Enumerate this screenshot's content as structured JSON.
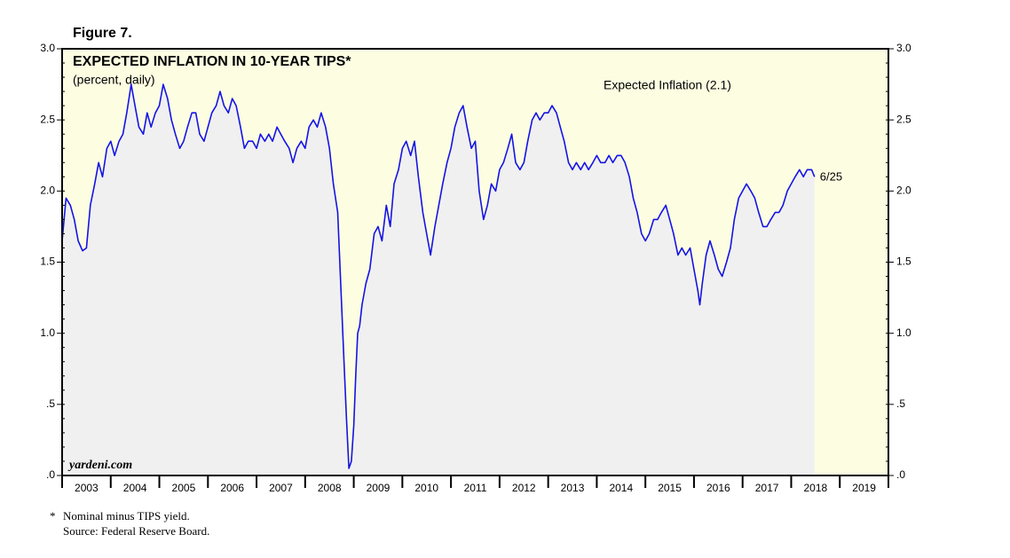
{
  "chart_data": {
    "type": "line",
    "figure_label": "Figure 7.",
    "title": "EXPECTED INFLATION IN 10-YEAR TIPS*",
    "subtitle": "(percent, daily)",
    "end_label": "6/25",
    "watermark": "yardeni.com",
    "footnote": "Nominal minus TIPS yield.",
    "footnote_marker": "*",
    "source": "Source: Federal Reserve Board.",
    "xlim": [
      2003,
      2020
    ],
    "xticks": [
      2003,
      2004,
      2005,
      2006,
      2007,
      2008,
      2009,
      2010,
      2011,
      2012,
      2013,
      2014,
      2015,
      2016,
      2017,
      2018,
      2019
    ],
    "ylim": [
      0,
      3
    ],
    "yticks": [
      {
        "value": 0,
        "label": ".0"
      },
      {
        "value": 0.5,
        "label": ".5"
      },
      {
        "value": 1,
        "label": "1.0"
      },
      {
        "value": 1.5,
        "label": "1.5"
      },
      {
        "value": 2,
        "label": "2.0"
      },
      {
        "value": 2.5,
        "label": "2.5"
      },
      {
        "value": 3,
        "label": "3.0"
      }
    ],
    "x": [
      2003,
      2003.08,
      2003.17,
      2003.25,
      2003.33,
      2003.42,
      2003.5,
      2003.58,
      2003.67,
      2003.75,
      2003.83,
      2003.92,
      2004,
      2004.08,
      2004.17,
      2004.25,
      2004.33,
      2004.42,
      2004.5,
      2004.58,
      2004.67,
      2004.75,
      2004.83,
      2004.92,
      2005,
      2005.08,
      2005.17,
      2005.25,
      2005.33,
      2005.42,
      2005.5,
      2005.58,
      2005.67,
      2005.75,
      2005.83,
      2005.92,
      2006,
      2006.08,
      2006.17,
      2006.25,
      2006.33,
      2006.42,
      2006.5,
      2006.58,
      2006.67,
      2006.75,
      2006.83,
      2006.92,
      2007,
      2007.08,
      2007.17,
      2007.25,
      2007.33,
      2007.42,
      2007.5,
      2007.58,
      2007.67,
      2007.75,
      2007.83,
      2007.92,
      2008,
      2008.08,
      2008.17,
      2008.25,
      2008.33,
      2008.42,
      2008.5,
      2008.58,
      2008.67,
      2008.75,
      2008.8,
      2008.85,
      2008.9,
      2008.95,
      2009,
      2009.04,
      2009.08,
      2009.12,
      2009.17,
      2009.25,
      2009.33,
      2009.42,
      2009.5,
      2009.58,
      2009.67,
      2009.75,
      2009.83,
      2009.92,
      2010,
      2010.08,
      2010.17,
      2010.25,
      2010.33,
      2010.42,
      2010.5,
      2010.58,
      2010.67,
      2010.75,
      2010.83,
      2010.92,
      2011,
      2011.08,
      2011.17,
      2011.25,
      2011.33,
      2011.42,
      2011.5,
      2011.58,
      2011.67,
      2011.75,
      2011.83,
      2011.92,
      2012,
      2012.08,
      2012.17,
      2012.25,
      2012.33,
      2012.42,
      2012.5,
      2012.58,
      2012.67,
      2012.75,
      2012.83,
      2012.92,
      2013,
      2013.08,
      2013.17,
      2013.25,
      2013.33,
      2013.42,
      2013.5,
      2013.58,
      2013.67,
      2013.75,
      2013.83,
      2013.92,
      2014,
      2014.08,
      2014.17,
      2014.25,
      2014.33,
      2014.42,
      2014.5,
      2014.58,
      2014.67,
      2014.75,
      2014.83,
      2014.92,
      2015,
      2015.08,
      2015.17,
      2015.25,
      2015.33,
      2015.42,
      2015.5,
      2015.58,
      2015.67,
      2015.75,
      2015.83,
      2015.92,
      2016,
      2016.08,
      2016.12,
      2016.17,
      2016.25,
      2016.33,
      2016.42,
      2016.5,
      2016.58,
      2016.67,
      2016.75,
      2016.83,
      2016.92,
      2017,
      2017.08,
      2017.17,
      2017.25,
      2017.33,
      2017.42,
      2017.5,
      2017.58,
      2017.67,
      2017.75,
      2017.83,
      2017.92,
      2018,
      2018.08,
      2018.17,
      2018.25,
      2018.33,
      2018.42,
      2018.48
    ],
    "series": [
      {
        "name": "Expected Inflation (2.1)",
        "color": "#1414e6",
        "values": [
          1.65,
          1.95,
          1.9,
          1.8,
          1.65,
          1.58,
          1.6,
          1.9,
          2.05,
          2.2,
          2.1,
          2.3,
          2.35,
          2.25,
          2.35,
          2.4,
          2.55,
          2.75,
          2.6,
          2.45,
          2.4,
          2.55,
          2.45,
          2.55,
          2.6,
          2.75,
          2.65,
          2.5,
          2.4,
          2.3,
          2.35,
          2.45,
          2.55,
          2.55,
          2.4,
          2.35,
          2.45,
          2.55,
          2.6,
          2.7,
          2.6,
          2.55,
          2.65,
          2.6,
          2.45,
          2.3,
          2.35,
          2.35,
          2.3,
          2.4,
          2.35,
          2.4,
          2.35,
          2.45,
          2.4,
          2.35,
          2.3,
          2.2,
          2.3,
          2.35,
          2.3,
          2.45,
          2.5,
          2.45,
          2.55,
          2.45,
          2.3,
          2.05,
          1.85,
          1.2,
          0.8,
          0.4,
          0.05,
          0.1,
          0.35,
          0.7,
          1.0,
          1.05,
          1.2,
          1.35,
          1.45,
          1.7,
          1.75,
          1.65,
          1.9,
          1.75,
          2.05,
          2.15,
          2.3,
          2.35,
          2.25,
          2.35,
          2.1,
          1.85,
          1.7,
          1.55,
          1.75,
          1.9,
          2.05,
          2.2,
          2.3,
          2.45,
          2.55,
          2.6,
          2.45,
          2.3,
          2.35,
          2.0,
          1.8,
          1.9,
          2.05,
          2.0,
          2.15,
          2.2,
          2.3,
          2.4,
          2.2,
          2.15,
          2.2,
          2.35,
          2.5,
          2.55,
          2.5,
          2.55,
          2.55,
          2.6,
          2.55,
          2.45,
          2.35,
          2.2,
          2.15,
          2.2,
          2.15,
          2.2,
          2.15,
          2.2,
          2.25,
          2.2,
          2.2,
          2.25,
          2.2,
          2.25,
          2.25,
          2.2,
          2.1,
          1.95,
          1.85,
          1.7,
          1.65,
          1.7,
          1.8,
          1.8,
          1.85,
          1.9,
          1.8,
          1.7,
          1.55,
          1.6,
          1.55,
          1.6,
          1.45,
          1.3,
          1.2,
          1.35,
          1.55,
          1.65,
          1.55,
          1.45,
          1.4,
          1.5,
          1.6,
          1.8,
          1.95,
          2.0,
          2.05,
          2.0,
          1.95,
          1.85,
          1.75,
          1.75,
          1.8,
          1.85,
          1.85,
          1.9,
          2.0,
          2.05,
          2.1,
          2.15,
          2.1,
          2.15,
          2.15,
          2.1
        ]
      }
    ],
    "background_color": "#fdfde2",
    "fill_color": "#f0f0f0"
  }
}
